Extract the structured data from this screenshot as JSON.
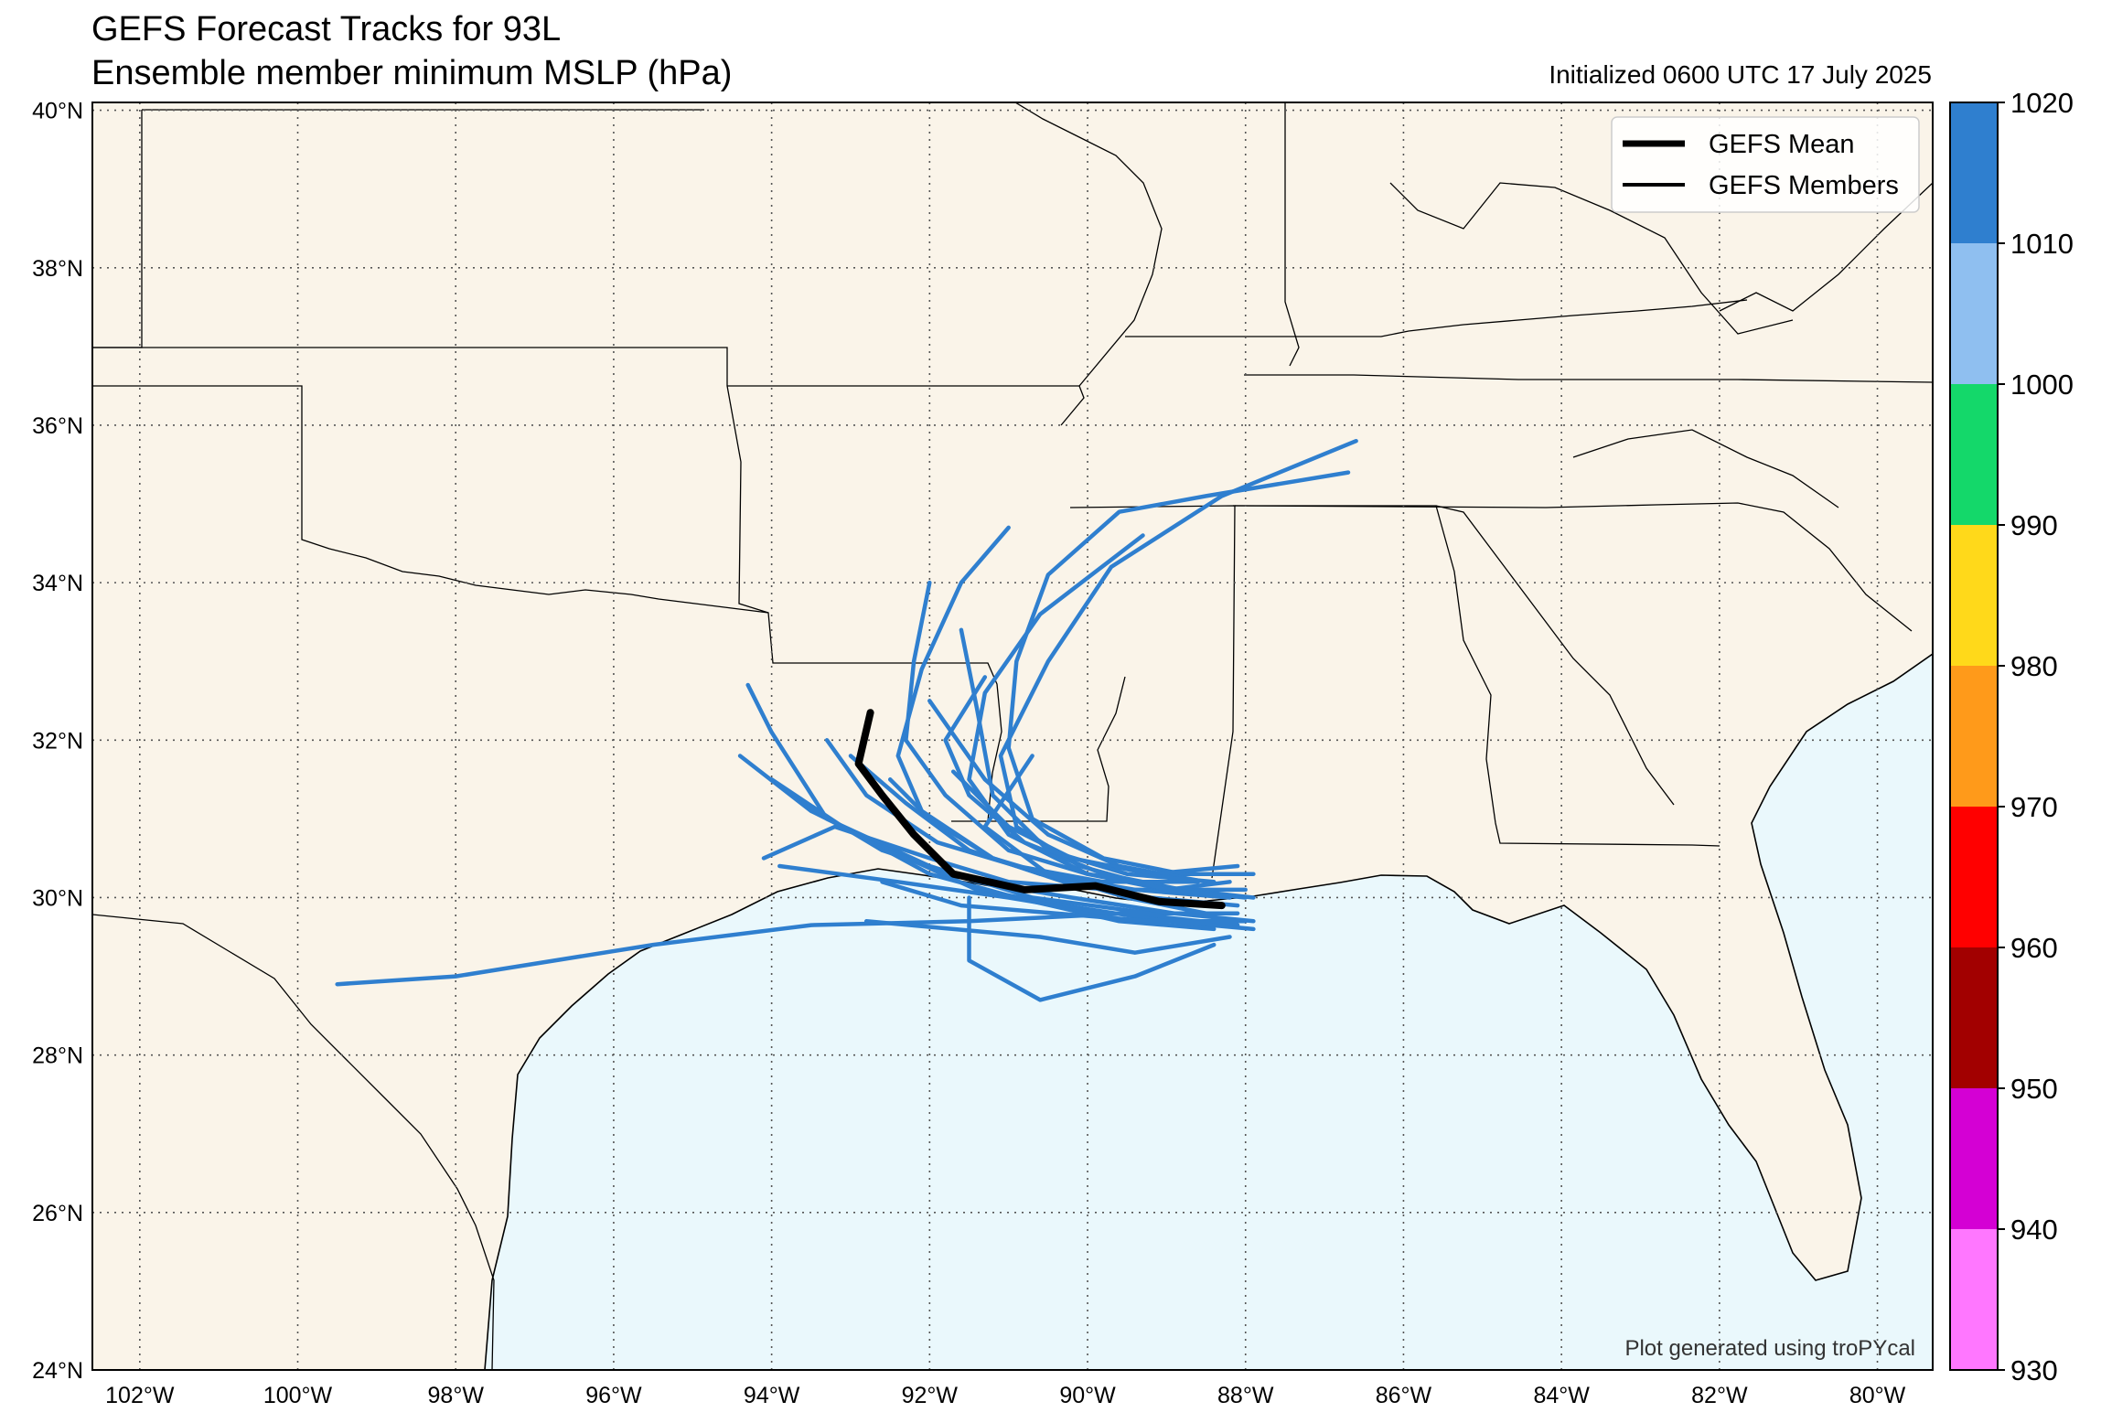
{
  "title_line1": "GEFS Forecast Tracks for 93L",
  "title_line2": "Ensemble member minimum MSLP (hPa)",
  "initialized": "Initialized 0600 UTC 17 July 2025",
  "credit": "Plot generated using troPYcal",
  "legend": {
    "mean": "GEFS Mean",
    "members": "GEFS Members"
  },
  "colors": {
    "land": "#faf4e9",
    "ocean": "#eaf8fc",
    "member_track": "#2f7fcf",
    "mean_track": "#000000"
  },
  "colorbar": {
    "ticks": [
      "1020",
      "1010",
      "1000",
      "990",
      "980",
      "970",
      "960",
      "950",
      "940",
      "930"
    ],
    "colors": [
      "#2f7fcf",
      "#8fbff0",
      "#14d86a",
      "#ffd91a",
      "#ff9a1a",
      "#ff0000",
      "#a20000",
      "#d400d4",
      "#ff77ff"
    ]
  },
  "map": {
    "lon_min": -102.6,
    "lon_max": -79.3,
    "lat_min": 24,
    "lat_max": 40.1,
    "lon_ticks": [
      -102,
      -100,
      -98,
      -96,
      -94,
      -92,
      -90,
      -88,
      -86,
      -84,
      -82,
      -80
    ],
    "lat_ticks": [
      24,
      26,
      28,
      30,
      32,
      34,
      36,
      38,
      40
    ],
    "lon_labels": [
      "102°W",
      "100°W",
      "98°W",
      "96°W",
      "94°W",
      "92°W",
      "90°W",
      "88°W",
      "86°W",
      "84°W",
      "82°W",
      "80°W"
    ],
    "lat_labels": [
      "24°N",
      "26°N",
      "28°N",
      "30°N",
      "32°N",
      "34°N",
      "36°N",
      "38°N",
      "40°N"
    ]
  },
  "chart_data": {
    "type": "line",
    "x_axis": "longitude",
    "y_axis": "latitude",
    "series": [
      {
        "name": "GEFS Mean",
        "points": [
          [
            -92.75,
            32.35
          ],
          [
            -92.9,
            31.7
          ],
          [
            -92.6,
            31.3
          ],
          [
            -92.2,
            30.8
          ],
          [
            -91.7,
            30.3
          ],
          [
            -90.8,
            30.1
          ],
          [
            -89.9,
            30.15
          ],
          [
            -89.1,
            29.95
          ],
          [
            -88.3,
            29.9
          ]
        ]
      },
      {
        "points": [
          [
            -99.5,
            28.9
          ],
          [
            -98,
            29.0
          ],
          [
            -95.5,
            29.4
          ],
          [
            -93.5,
            29.65
          ],
          [
            -91.5,
            29.7
          ],
          [
            -89.5,
            29.8
          ],
          [
            -88.1,
            29.65
          ]
        ]
      },
      {
        "points": [
          [
            -94.3,
            32.7
          ],
          [
            -94,
            32.1
          ],
          [
            -93.3,
            31.0
          ],
          [
            -92,
            30.4
          ],
          [
            -90.7,
            30.0
          ],
          [
            -89.2,
            29.8
          ],
          [
            -88.1,
            29.8
          ]
        ]
      },
      {
        "points": [
          [
            -94.4,
            31.8
          ],
          [
            -93.5,
            31.1
          ],
          [
            -92.5,
            30.6
          ],
          [
            -91.4,
            30.1
          ],
          [
            -90.3,
            29.9
          ],
          [
            -89,
            29.7
          ],
          [
            -87.9,
            29.6
          ]
        ]
      },
      {
        "points": [
          [
            -94.1,
            30.5
          ],
          [
            -93.2,
            30.9
          ],
          [
            -92,
            30.5
          ],
          [
            -91,
            30.2
          ],
          [
            -89.7,
            30.1
          ],
          [
            -88.6,
            30.1
          ]
        ]
      },
      {
        "points": [
          [
            -93.0,
            31.8
          ],
          [
            -92.3,
            31.2
          ],
          [
            -91.5,
            30.6
          ],
          [
            -90.6,
            30.3
          ],
          [
            -89.4,
            30.1
          ],
          [
            -88.2,
            30.0
          ]
        ]
      },
      {
        "points": [
          [
            -92.5,
            31.5
          ],
          [
            -92,
            31.0
          ],
          [
            -91.2,
            30.5
          ],
          [
            -90.3,
            30.2
          ],
          [
            -89.3,
            30.0
          ],
          [
            -88.3,
            29.9
          ]
        ]
      },
      {
        "points": [
          [
            -91.3,
            32.8
          ],
          [
            -91.8,
            32.0
          ],
          [
            -91.5,
            31.3
          ],
          [
            -90.8,
            30.7
          ],
          [
            -89.8,
            30.3
          ],
          [
            -88.8,
            30.1
          ],
          [
            -88.0,
            30.1
          ]
        ]
      },
      {
        "points": [
          [
            -92.0,
            34.0
          ],
          [
            -92.2,
            33.0
          ],
          [
            -92.3,
            32.0
          ],
          [
            -91.8,
            31.3
          ],
          [
            -91,
            30.6
          ],
          [
            -90,
            30.3
          ],
          [
            -89,
            30.1
          ],
          [
            -88.2,
            30.2
          ]
        ]
      },
      {
        "points": [
          [
            -91.0,
            34.7
          ],
          [
            -91.6,
            34.0
          ],
          [
            -92.1,
            32.9
          ],
          [
            -92.4,
            31.8
          ],
          [
            -92.1,
            31.1
          ],
          [
            -91.2,
            30.5
          ],
          [
            -90.2,
            30.2
          ],
          [
            -89.2,
            30.0
          ],
          [
            -88.1,
            29.9
          ]
        ]
      },
      {
        "points": [
          [
            -89.3,
            34.6
          ],
          [
            -90.6,
            33.6
          ],
          [
            -91.3,
            32.6
          ],
          [
            -91.5,
            31.5
          ],
          [
            -91.0,
            30.8
          ],
          [
            -90.0,
            30.3
          ],
          [
            -88.8,
            30.1
          ],
          [
            -87.9,
            30.0
          ]
        ]
      },
      {
        "points": [
          [
            -86.6,
            35.8
          ],
          [
            -88.3,
            35.1
          ],
          [
            -89.7,
            34.2
          ],
          [
            -90.5,
            33.0
          ],
          [
            -91.1,
            31.8
          ],
          [
            -90.9,
            30.9
          ],
          [
            -90.1,
            30.4
          ],
          [
            -89.0,
            30.1
          ],
          [
            -88.0,
            30.0
          ]
        ]
      },
      {
        "points": [
          [
            -86.7,
            35.4
          ],
          [
            -88.5,
            35.1
          ],
          [
            -89.6,
            34.9
          ],
          [
            -90.5,
            34.1
          ],
          [
            -90.9,
            33.0
          ],
          [
            -91.0,
            31.9
          ],
          [
            -90.7,
            31.0
          ],
          [
            -89.8,
            30.5
          ],
          [
            -88.8,
            30.3
          ],
          [
            -87.9,
            30.3
          ]
        ]
      },
      {
        "points": [
          [
            -90.7,
            31.8
          ],
          [
            -91.3,
            30.9
          ],
          [
            -90.5,
            30.3
          ],
          [
            -89.5,
            30.0
          ],
          [
            -88.5,
            29.8
          ]
        ]
      },
      {
        "points": [
          [
            -91.5,
            30.0
          ],
          [
            -91.5,
            29.2
          ],
          [
            -90.6,
            28.7
          ],
          [
            -89.4,
            29.0
          ],
          [
            -88.4,
            29.4
          ]
        ]
      },
      {
        "points": [
          [
            -92.8,
            29.7
          ],
          [
            -91.7,
            29.6
          ],
          [
            -90.6,
            29.5
          ],
          [
            -89.4,
            29.3
          ],
          [
            -88.2,
            29.5
          ]
        ]
      },
      {
        "points": [
          [
            -93.9,
            30.4
          ],
          [
            -92.4,
            30.2
          ],
          [
            -91.0,
            30.0
          ],
          [
            -89.8,
            29.8
          ],
          [
            -88.7,
            29.8
          ]
        ]
      },
      {
        "points": [
          [
            -93.3,
            32.0
          ],
          [
            -92.8,
            31.3
          ],
          [
            -91.9,
            30.7
          ],
          [
            -90.9,
            30.4
          ],
          [
            -89.8,
            30.2
          ],
          [
            -88.6,
            30.2
          ]
        ]
      },
      {
        "points": [
          [
            -94.0,
            31.5
          ],
          [
            -93.1,
            30.9
          ],
          [
            -92.0,
            30.3
          ],
          [
            -90.9,
            30.0
          ],
          [
            -89.6,
            29.7
          ],
          [
            -88.4,
            29.6
          ]
        ]
      },
      {
        "points": [
          [
            -92.0,
            32.5
          ],
          [
            -91.3,
            31.5
          ],
          [
            -90.5,
            30.8
          ],
          [
            -89.6,
            30.4
          ],
          [
            -88.5,
            30.2
          ]
        ]
      },
      {
        "points": [
          [
            -91.7,
            31.6
          ],
          [
            -91.0,
            30.9
          ],
          [
            -90.2,
            30.5
          ],
          [
            -89.2,
            30.3
          ],
          [
            -88.1,
            30.4
          ]
        ]
      },
      {
        "points": [
          [
            -93.6,
            31.2
          ],
          [
            -92.6,
            30.6
          ],
          [
            -91.4,
            30.2
          ],
          [
            -90.2,
            30.0
          ],
          [
            -88.9,
            29.8
          ],
          [
            -87.9,
            29.7
          ]
        ]
      },
      {
        "points": [
          [
            -92.6,
            30.2
          ],
          [
            -91.6,
            29.9
          ],
          [
            -90.4,
            29.8
          ],
          [
            -89.2,
            29.7
          ],
          [
            -88.0,
            29.7
          ]
        ]
      },
      {
        "points": [
          [
            -91.6,
            33.4
          ],
          [
            -91.4,
            32.4
          ],
          [
            -91.2,
            31.3
          ],
          [
            -90.5,
            30.6
          ],
          [
            -89.5,
            30.3
          ],
          [
            -88.4,
            30.2
          ]
        ]
      }
    ]
  }
}
